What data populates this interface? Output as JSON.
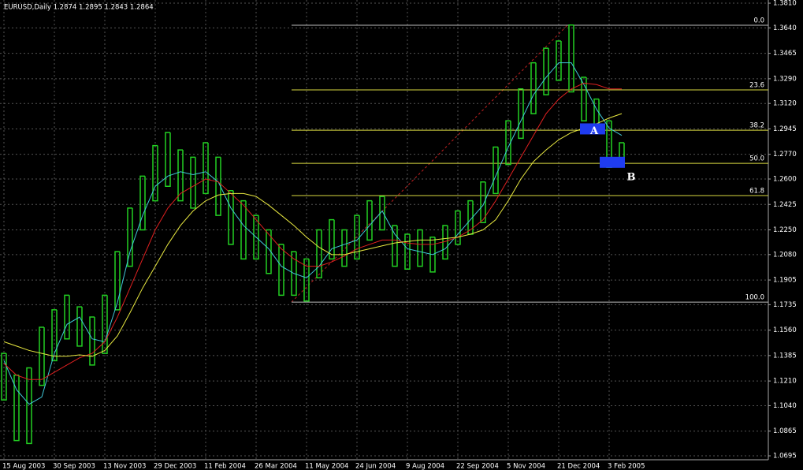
{
  "chart_data": {
    "type": "ohlc",
    "title": "EURUSD,Daily  1.2874 1.2895 1.2843 1.2864",
    "categories": [
      "15 Aug 2003",
      null,
      null,
      null,
      "30 Sep 2003",
      null,
      null,
      null,
      "13 Nov 2003",
      null,
      null,
      null,
      "29 Dec 2003",
      null,
      null,
      null,
      "11 Feb 2004",
      null,
      null,
      null,
      "26 Mar 2004",
      null,
      null,
      null,
      "11 May 2004",
      null,
      null,
      null,
      "24 Jun 2004",
      null,
      null,
      null,
      "9 Aug 2004",
      null,
      null,
      null,
      "22 Sep 2004",
      null,
      null,
      null,
      "5 Nov 2004",
      null,
      null,
      null,
      "21 Dec 2004",
      null,
      null,
      null,
      "3 Feb 2005",
      null
    ],
    "high": [
      1.14,
      1.125,
      1.13,
      1.158,
      1.17,
      1.18,
      1.172,
      1.165,
      1.18,
      1.21,
      1.24,
      1.262,
      1.283,
      1.292,
      1.28,
      1.275,
      1.285,
      1.275,
      1.252,
      1.245,
      1.235,
      1.225,
      1.215,
      1.21,
      1.205,
      1.225,
      1.232,
      1.225,
      1.235,
      1.245,
      1.248,
      1.228,
      1.222,
      1.225,
      1.22,
      1.228,
      1.238,
      1.245,
      1.258,
      1.282,
      1.3,
      1.322,
      1.34,
      1.35,
      1.355,
      1.366,
      1.33,
      1.315,
      1.3,
      1.285
    ],
    "low": [
      1.108,
      1.08,
      1.078,
      1.118,
      1.135,
      1.15,
      1.145,
      1.132,
      1.14,
      1.17,
      1.2,
      1.225,
      1.245,
      1.255,
      1.245,
      1.24,
      1.25,
      1.235,
      1.215,
      1.205,
      1.205,
      1.195,
      1.18,
      1.18,
      1.176,
      1.192,
      1.205,
      1.2,
      1.205,
      1.218,
      1.225,
      1.2,
      1.198,
      1.2,
      1.196,
      1.205,
      1.215,
      1.222,
      1.23,
      1.25,
      1.27,
      1.288,
      1.305,
      1.318,
      1.328,
      1.32,
      1.3,
      1.292,
      1.268,
      1.272
    ],
    "bar_color": "#22d022",
    "series": [
      {
        "color": "#40c8d8",
        "values": [
          1.135,
          1.115,
          1.105,
          1.11,
          1.14,
          1.16,
          1.165,
          1.15,
          1.148,
          1.175,
          1.21,
          1.235,
          1.255,
          1.262,
          1.265,
          1.263,
          1.265,
          1.258,
          1.24,
          1.228,
          1.22,
          1.212,
          1.2,
          1.195,
          1.192,
          1.2,
          1.212,
          1.215,
          1.218,
          1.228,
          1.238,
          1.222,
          1.212,
          1.21,
          1.208,
          1.212,
          1.222,
          1.232,
          1.242,
          1.262,
          1.282,
          1.3,
          1.318,
          1.33,
          1.34,
          1.34,
          1.325,
          1.308,
          1.295,
          1.29
        ]
      },
      {
        "color": "#e02020",
        "values": [
          1.133,
          1.125,
          1.122,
          1.122,
          1.127,
          1.132,
          1.137,
          1.14,
          1.148,
          1.165,
          1.185,
          1.205,
          1.225,
          1.24,
          1.25,
          1.255,
          1.26,
          1.258,
          1.25,
          1.242,
          1.232,
          1.222,
          1.212,
          1.205,
          1.2,
          1.2,
          1.203,
          1.207,
          1.212,
          1.215,
          1.218,
          1.218,
          1.216,
          1.215,
          1.215,
          1.217,
          1.22,
          1.225,
          1.232,
          1.245,
          1.26,
          1.275,
          1.29,
          1.305,
          1.315,
          1.322,
          1.326,
          1.325,
          1.322,
          1.322
        ]
      },
      {
        "color": "#e8e840",
        "values": [
          1.148,
          1.145,
          1.142,
          1.14,
          1.138,
          1.138,
          1.139,
          1.138,
          1.142,
          1.152,
          1.168,
          1.185,
          1.2,
          1.215,
          1.228,
          1.238,
          1.245,
          1.249,
          1.25,
          1.25,
          1.248,
          1.242,
          1.235,
          1.228,
          1.22,
          1.213,
          1.208,
          1.208,
          1.21,
          1.212,
          1.214,
          1.216,
          1.217,
          1.218,
          1.218,
          1.219,
          1.22,
          1.222,
          1.225,
          1.232,
          1.245,
          1.26,
          1.272,
          1.28,
          1.287,
          1.292,
          1.295,
          1.298,
          1.302,
          1.305
        ]
      }
    ],
    "fib_levels": [
      {
        "value": 1.3658,
        "label": "0.0"
      },
      {
        "value": 1.3213,
        "label": "23.6"
      },
      {
        "value": 1.2936,
        "label": "38.2"
      },
      {
        "value": 1.2708,
        "label": "50.0"
      },
      {
        "value": 1.2486,
        "label": "61.8"
      },
      {
        "value": 1.1753,
        "label": "100.0"
      }
    ],
    "markers": [
      {
        "value": 1.2945,
        "label": "A"
      },
      {
        "value": 1.2715,
        "label": "B"
      }
    ],
    "ylim": [
      1.0668,
      1.3832
    ],
    "yticks": [
      {
        "value": 1.381,
        "label": "1.3810"
      },
      {
        "value": 1.364,
        "label": "1.3640"
      },
      {
        "value": 1.3465,
        "label": "1.3465"
      },
      {
        "value": 1.329,
        "label": "1.3290"
      },
      {
        "value": 1.312,
        "label": "1.3120"
      },
      {
        "value": 1.2945,
        "label": "1.2945"
      },
      {
        "value": 1.277,
        "label": "1.2770"
      },
      {
        "value": 1.26,
        "label": "1.2600"
      },
      {
        "value": 1.2425,
        "label": "1.2425"
      },
      {
        "value": 1.225,
        "label": "1.2250"
      },
      {
        "value": 1.208,
        "label": "1.2080"
      },
      {
        "value": 1.1905,
        "label": "1.1905"
      },
      {
        "value": 1.1735,
        "label": "1.1735"
      },
      {
        "value": 1.156,
        "label": "1.1560"
      },
      {
        "value": 1.1385,
        "label": "1.1385"
      },
      {
        "value": 1.121,
        "label": "1.1210"
      },
      {
        "value": 1.104,
        "label": "1.1040"
      },
      {
        "value": 1.0865,
        "label": "1.0865"
      },
      {
        "value": 1.0695,
        "label": "1.0695"
      }
    ],
    "grid": true
  }
}
